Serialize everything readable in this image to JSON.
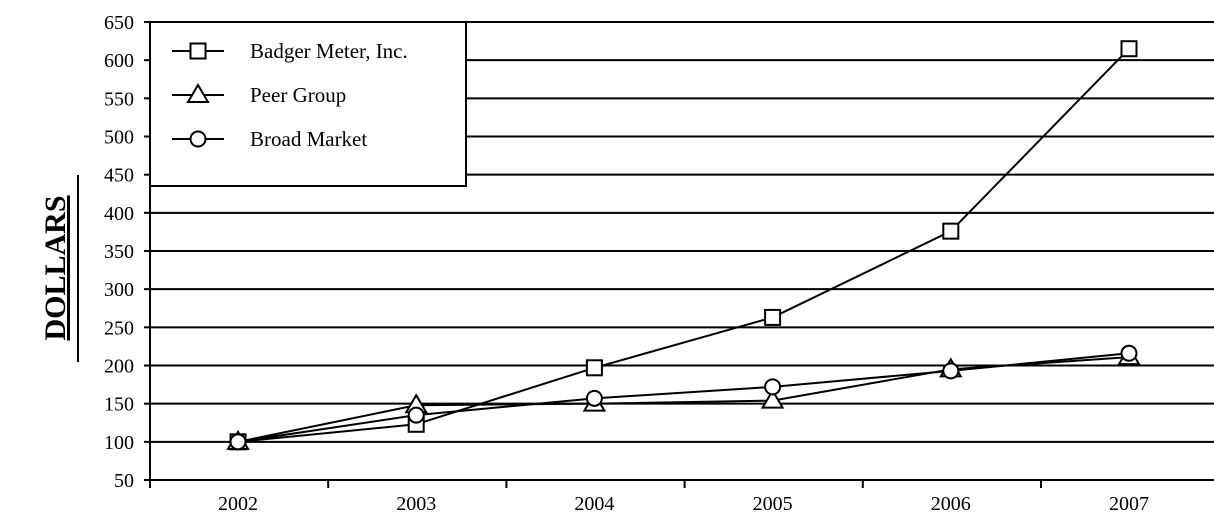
{
  "chart_data": {
    "type": "line",
    "ylabel": "DOLLARS",
    "xlabel": "",
    "title": "",
    "categories": [
      "2002",
      "2003",
      "2004",
      "2005",
      "2006",
      "2007"
    ],
    "ylim": [
      50,
      650
    ],
    "yticks": [
      50,
      100,
      150,
      200,
      250,
      300,
      350,
      400,
      450,
      500,
      550,
      600,
      650
    ],
    "grid": "horizontal",
    "legend_position": "top-left",
    "series": [
      {
        "name": "Badger Meter, Inc.",
        "marker": "square",
        "values": [
          100,
          123,
          197,
          263,
          376,
          615
        ]
      },
      {
        "name": "Peer Group",
        "marker": "triangle",
        "values": [
          100,
          148,
          150,
          154,
          195,
          211
        ]
      },
      {
        "name": "Broad Market",
        "marker": "circle",
        "values": [
          100,
          135,
          157,
          172,
          193,
          216
        ]
      }
    ],
    "colors": {
      "line": "#000000",
      "background": "#ffffff"
    }
  }
}
